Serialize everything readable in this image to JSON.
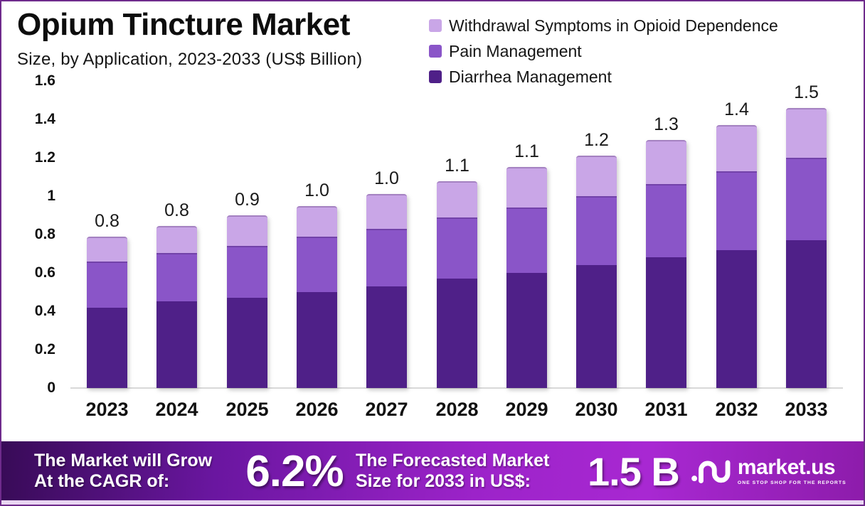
{
  "chart_data": {
    "type": "bar",
    "stacked": true,
    "title": "Opium Tincture Market",
    "subtitle": "Size, by Application, 2023-2033 (US$ Billion)",
    "unit": "US$ Billion",
    "categories": [
      "2023",
      "2024",
      "2025",
      "2026",
      "2027",
      "2028",
      "2029",
      "2030",
      "2031",
      "2032",
      "2033"
    ],
    "series": [
      {
        "name": "Diarrhea Management",
        "color": "#4f2088",
        "values": [
          0.42,
          0.45,
          0.47,
          0.5,
          0.53,
          0.57,
          0.6,
          0.64,
          0.68,
          0.72,
          0.77
        ]
      },
      {
        "name": "Pain Management",
        "color": "#8a55c8",
        "values": [
          0.24,
          0.25,
          0.27,
          0.29,
          0.3,
          0.32,
          0.34,
          0.36,
          0.38,
          0.41,
          0.43
        ]
      },
      {
        "name": "Withdrawal Symptoms in Opioid Dependence",
        "color": "#c9a6e7",
        "values": [
          0.13,
          0.14,
          0.16,
          0.16,
          0.18,
          0.19,
          0.21,
          0.21,
          0.23,
          0.24,
          0.26
        ]
      }
    ],
    "total_labels": [
      "0.8",
      "0.8",
      "0.9",
      "1.0",
      "1.0",
      "1.1",
      "1.1",
      "1.2",
      "1.3",
      "1.4",
      "1.5"
    ],
    "yticks": [
      {
        "v": 1.6,
        "label": "1.6"
      },
      {
        "v": 1.4,
        "label": "1.4"
      },
      {
        "v": 1.2,
        "label": "1.2"
      },
      {
        "v": 1.0,
        "label": "1"
      },
      {
        "v": 0.8,
        "label": "0.8"
      },
      {
        "v": 0.6,
        "label": "0.6"
      },
      {
        "v": 0.4,
        "label": "0.4"
      },
      {
        "v": 0.2,
        "label": "0.2"
      },
      {
        "v": 0.0,
        "label": "0"
      }
    ],
    "ylim": [
      0,
      1.6
    ],
    "grid": false,
    "legend_position": "top-right"
  },
  "legend": {
    "items": [
      {
        "label": "Withdrawal Symptoms in Opioid Dependence",
        "color": "#c9a6e7"
      },
      {
        "label": "Pain Management",
        "color": "#8a55c8"
      },
      {
        "label": "Diarrhea Management",
        "color": "#4f2088"
      }
    ]
  },
  "banner": {
    "growth_line1": "The Market will Grow",
    "growth_line2": "At the CAGR of:",
    "cagr_value": "6.2%",
    "forecast_line1": "The Forecasted Market",
    "forecast_line2": "Size for 2033 in US$:",
    "forecast_value": "1.5 B",
    "brand": {
      "name": "market.us",
      "tagline": "ONE STOP SHOP FOR THE REPORTS"
    }
  },
  "colors": {
    "border": "#6f2b8c",
    "banner_gradient": [
      "#380b57",
      "#6a16a0",
      "#9c23c9",
      "#a828d2",
      "#8d1cab"
    ],
    "banner_text": "#ffffff",
    "axis_line": "#d8d8d8",
    "value_label_text": "#1a1a1a"
  }
}
